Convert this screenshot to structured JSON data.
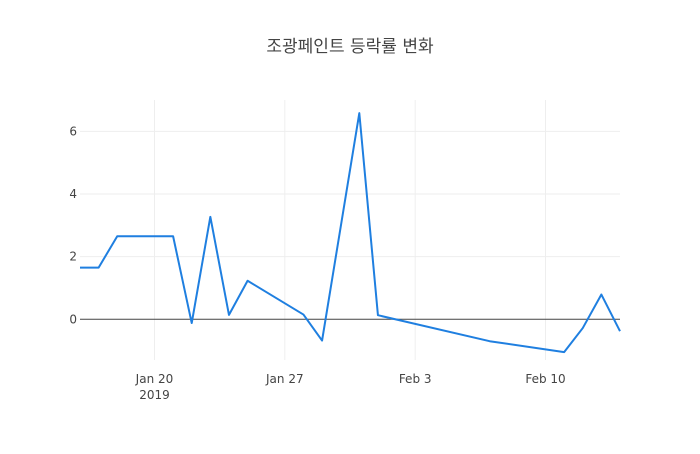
{
  "chart_data": {
    "type": "line",
    "title": "조광페인트 등락률 변화",
    "xlabel": "",
    "ylabel": "",
    "x_start": "2019-01-16",
    "x_end": "2019-02-14",
    "ylim": [
      -1.3,
      7.0
    ],
    "y_ticks": [
      0,
      2,
      4,
      6
    ],
    "y_tick_labels": [
      "0",
      "2",
      "4",
      "6"
    ],
    "x_ticks": [
      {
        "date": "2019-01-20",
        "label": "Jan 20",
        "sublabel": "2019"
      },
      {
        "date": "2019-01-27",
        "label": "Jan 27",
        "sublabel": ""
      },
      {
        "date": "2019-02-03",
        "label": "Feb 3",
        "sublabel": ""
      },
      {
        "date": "2019-02-10",
        "label": "Feb 10",
        "sublabel": ""
      }
    ],
    "grid": true,
    "zero_line": true,
    "line_color": "#1f7fe0",
    "x": [
      "2019-01-16",
      "2019-01-17",
      "2019-01-18",
      "2019-01-21",
      "2019-01-22",
      "2019-01-23",
      "2019-01-24",
      "2019-01-25",
      "2019-01-28",
      "2019-01-29",
      "2019-01-31",
      "2019-02-01",
      "2019-02-07",
      "2019-02-11",
      "2019-02-12",
      "2019-02-13",
      "2019-02-14"
    ],
    "values": [
      1.65,
      1.65,
      2.65,
      2.65,
      -0.12,
      3.27,
      0.14,
      1.23,
      0.15,
      -0.68,
      6.58,
      0.13,
      -0.7,
      -1.05,
      -0.28,
      0.79,
      -0.38
    ]
  }
}
